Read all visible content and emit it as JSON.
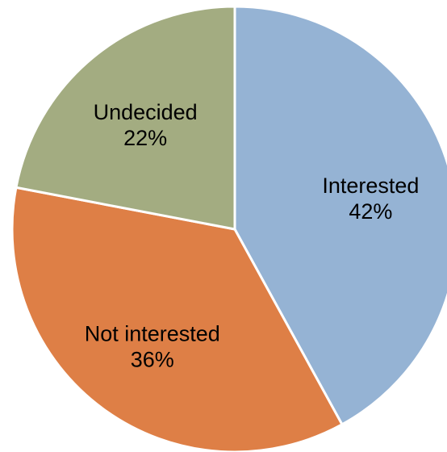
{
  "chart_data": {
    "type": "pie",
    "title": "",
    "slices": [
      {
        "label": "Interested",
        "value": 42,
        "value_label": "42%",
        "color": "#95B3D4"
      },
      {
        "label": "Not interested",
        "value": 36,
        "value_label": "36%",
        "color": "#DE7F46"
      },
      {
        "label": "Undecided",
        "value": 22,
        "value_label": "22%",
        "color": "#A3AC81"
      }
    ],
    "start_angle_deg": 0,
    "direction": "clockwise",
    "legend": "none",
    "data_labels": "inside"
  }
}
